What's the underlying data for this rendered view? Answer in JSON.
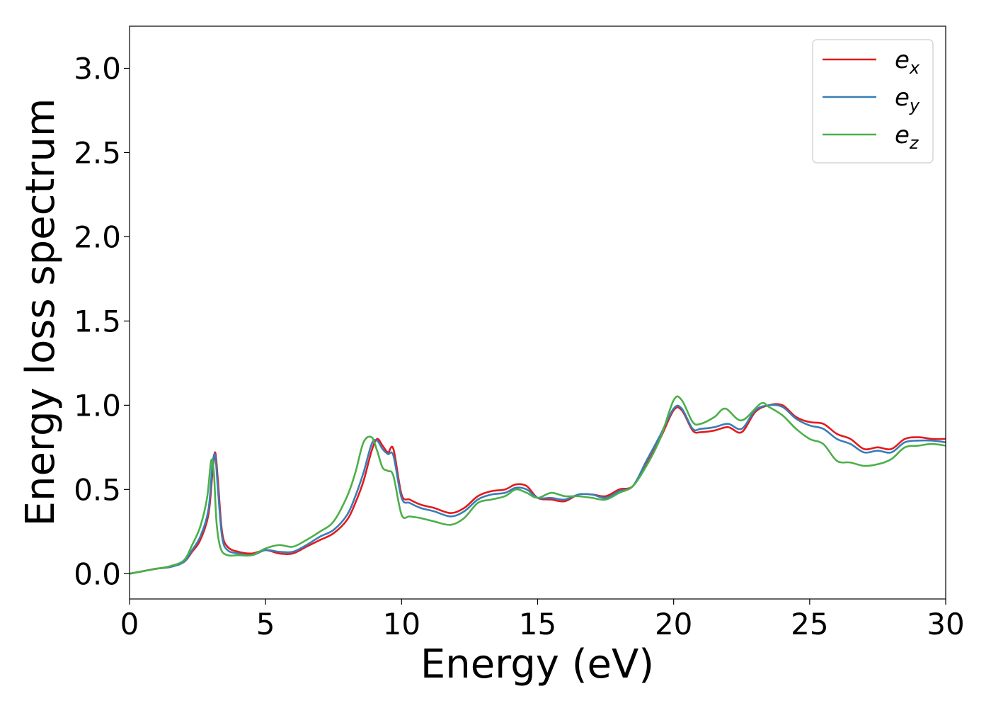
{
  "chart_data": {
    "type": "line",
    "title": "",
    "xlabel": "Energy (eV)",
    "ylabel": "Energy loss spectrum",
    "xlim": [
      0,
      30
    ],
    "ylim": [
      -0.15,
      3.25
    ],
    "xticks": [
      0,
      5,
      10,
      15,
      20,
      25,
      30
    ],
    "xtick_labels": [
      "0",
      "5",
      "10",
      "15",
      "20",
      "25",
      "30"
    ],
    "yticks": [
      0.0,
      0.5,
      1.0,
      1.5,
      2.0,
      2.5,
      3.0
    ],
    "ytick_labels": [
      "0.0",
      "0.5",
      "1.0",
      "1.5",
      "2.0",
      "2.5",
      "3.0"
    ],
    "grid": false,
    "legend": "top-right",
    "series": [
      {
        "name": "e_x",
        "label_base": "e",
        "label_sub": "x",
        "color": "#e41a1c",
        "x": [
          0,
          0.5,
          1.0,
          1.5,
          2.0,
          2.3,
          2.6,
          2.9,
          3.05,
          3.15,
          3.25,
          3.4,
          3.6,
          4.0,
          4.5,
          5.0,
          5.5,
          6.0,
          6.5,
          7.0,
          7.5,
          8.0,
          8.3,
          8.6,
          8.9,
          9.1,
          9.3,
          9.5,
          9.7,
          10.0,
          10.3,
          10.7,
          11.2,
          11.8,
          12.3,
          12.8,
          13.3,
          13.8,
          14.2,
          14.6,
          15.0,
          15.5,
          16.0,
          16.5,
          17.0,
          17.5,
          18.0,
          18.5,
          19.0,
          19.5,
          20.0,
          20.3,
          20.7,
          21.0,
          21.5,
          22.0,
          22.5,
          23.0,
          23.5,
          24.0,
          24.5,
          25.0,
          25.5,
          26.0,
          26.5,
          27.0,
          27.5,
          28.0,
          28.5,
          29.0,
          29.5,
          30.0
        ],
        "y": [
          0.0,
          0.015,
          0.03,
          0.04,
          0.07,
          0.13,
          0.2,
          0.35,
          0.6,
          0.72,
          0.55,
          0.25,
          0.16,
          0.13,
          0.12,
          0.14,
          0.12,
          0.12,
          0.16,
          0.2,
          0.24,
          0.32,
          0.42,
          0.55,
          0.73,
          0.8,
          0.76,
          0.72,
          0.74,
          0.47,
          0.44,
          0.41,
          0.39,
          0.36,
          0.39,
          0.46,
          0.49,
          0.5,
          0.53,
          0.52,
          0.45,
          0.44,
          0.43,
          0.47,
          0.47,
          0.46,
          0.5,
          0.52,
          0.65,
          0.8,
          0.97,
          0.97,
          0.85,
          0.84,
          0.85,
          0.87,
          0.84,
          0.96,
          1.0,
          1.0,
          0.93,
          0.9,
          0.89,
          0.83,
          0.8,
          0.74,
          0.75,
          0.74,
          0.8,
          0.81,
          0.8,
          0.8
        ]
      },
      {
        "name": "e_y",
        "label_base": "e",
        "label_sub": "y",
        "color": "#377eb8",
        "x": [
          0,
          0.5,
          1.0,
          1.5,
          2.0,
          2.3,
          2.6,
          2.9,
          3.05,
          3.15,
          3.25,
          3.4,
          3.6,
          4.0,
          4.5,
          5.0,
          5.5,
          6.0,
          6.5,
          7.0,
          7.5,
          8.0,
          8.3,
          8.6,
          8.9,
          9.1,
          9.3,
          9.5,
          9.7,
          10.0,
          10.3,
          10.7,
          11.2,
          11.8,
          12.3,
          12.8,
          13.3,
          13.8,
          14.2,
          14.6,
          15.0,
          15.5,
          16.0,
          16.5,
          17.0,
          17.5,
          18.0,
          18.5,
          19.0,
          19.5,
          20.0,
          20.3,
          20.7,
          21.0,
          21.5,
          22.0,
          22.5,
          23.0,
          23.5,
          24.0,
          24.5,
          25.0,
          25.5,
          26.0,
          26.5,
          27.0,
          27.5,
          28.0,
          28.5,
          29.0,
          29.5,
          30.0
        ],
        "y": [
          0.0,
          0.015,
          0.03,
          0.04,
          0.07,
          0.14,
          0.22,
          0.38,
          0.65,
          0.7,
          0.5,
          0.22,
          0.14,
          0.12,
          0.11,
          0.14,
          0.13,
          0.13,
          0.17,
          0.22,
          0.26,
          0.35,
          0.46,
          0.6,
          0.77,
          0.79,
          0.74,
          0.71,
          0.7,
          0.45,
          0.42,
          0.39,
          0.37,
          0.34,
          0.37,
          0.44,
          0.47,
          0.48,
          0.51,
          0.5,
          0.45,
          0.45,
          0.44,
          0.47,
          0.47,
          0.45,
          0.49,
          0.52,
          0.67,
          0.82,
          0.98,
          0.98,
          0.86,
          0.86,
          0.87,
          0.89,
          0.86,
          0.97,
          1.0,
          0.99,
          0.92,
          0.88,
          0.86,
          0.8,
          0.77,
          0.72,
          0.73,
          0.72,
          0.78,
          0.79,
          0.79,
          0.78
        ]
      },
      {
        "name": "e_z",
        "label_base": "e",
        "label_sub": "z",
        "color": "#4daf4a",
        "x": [
          0,
          0.5,
          1.0,
          1.5,
          2.0,
          2.3,
          2.6,
          2.85,
          3.0,
          3.1,
          3.2,
          3.35,
          3.6,
          4.0,
          4.5,
          5.0,
          5.5,
          6.0,
          6.5,
          7.0,
          7.5,
          8.0,
          8.3,
          8.6,
          8.9,
          9.1,
          9.3,
          9.5,
          9.7,
          10.0,
          10.3,
          10.7,
          11.2,
          11.8,
          12.3,
          12.8,
          13.3,
          13.8,
          14.2,
          14.6,
          15.0,
          15.5,
          16.0,
          16.5,
          17.0,
          17.5,
          18.0,
          18.5,
          19.0,
          19.5,
          20.0,
          20.3,
          20.7,
          21.0,
          21.5,
          21.9,
          22.5,
          23.2,
          23.5,
          24.0,
          24.5,
          25.0,
          25.5,
          26.0,
          26.5,
          27.0,
          27.5,
          28.0,
          28.5,
          29.0,
          29.5,
          30.0
        ],
        "y": [
          0.0,
          0.015,
          0.03,
          0.045,
          0.08,
          0.17,
          0.28,
          0.45,
          0.67,
          0.6,
          0.3,
          0.15,
          0.11,
          0.11,
          0.11,
          0.15,
          0.17,
          0.16,
          0.2,
          0.25,
          0.31,
          0.46,
          0.6,
          0.78,
          0.81,
          0.73,
          0.63,
          0.61,
          0.58,
          0.35,
          0.34,
          0.33,
          0.31,
          0.29,
          0.33,
          0.42,
          0.44,
          0.46,
          0.5,
          0.48,
          0.45,
          0.48,
          0.46,
          0.46,
          0.45,
          0.44,
          0.48,
          0.52,
          0.64,
          0.8,
          1.03,
          1.03,
          0.9,
          0.89,
          0.93,
          0.98,
          0.91,
          1.01,
          0.99,
          0.94,
          0.86,
          0.8,
          0.77,
          0.67,
          0.66,
          0.64,
          0.65,
          0.68,
          0.75,
          0.76,
          0.77,
          0.76
        ]
      }
    ]
  }
}
